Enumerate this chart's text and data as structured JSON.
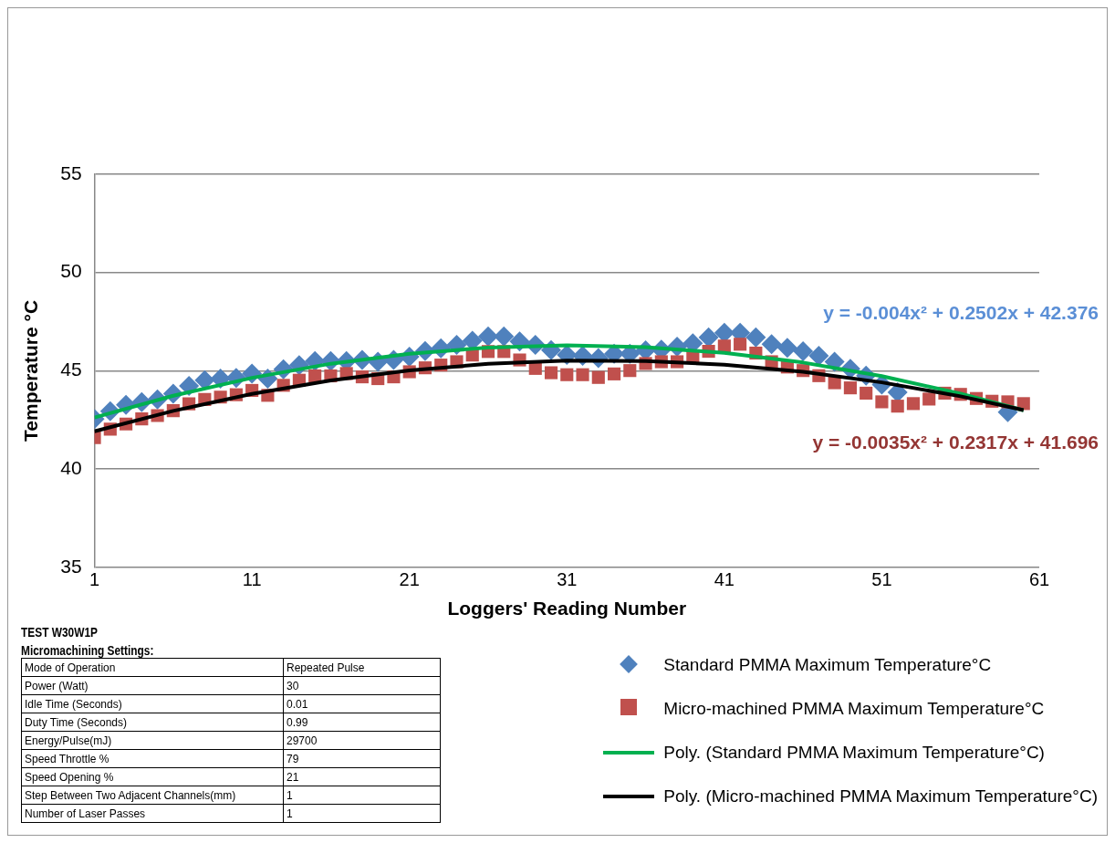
{
  "chart_data": {
    "type": "scatter",
    "xlabel": "Loggers' Reading Number",
    "ylabel": "Temperature °C",
    "xlim": [
      1,
      61
    ],
    "xticks": [
      1,
      11,
      21,
      31,
      41,
      51,
      61
    ],
    "ylim": [
      35,
      55
    ],
    "yticks": [
      35,
      40,
      45,
      50,
      55
    ],
    "grid": "y",
    "legend": "bottom right",
    "x": [
      1,
      2,
      3,
      4,
      5,
      6,
      7,
      8,
      9,
      10,
      11,
      12,
      13,
      14,
      15,
      16,
      17,
      18,
      19,
      20,
      21,
      22,
      23,
      24,
      25,
      26,
      27,
      28,
      29,
      30,
      31,
      32,
      33,
      34,
      35,
      36,
      37,
      38,
      39,
      40,
      41,
      42,
      43,
      44,
      45,
      46,
      47,
      48,
      49,
      50,
      51,
      52,
      53,
      54,
      55,
      56,
      57,
      58,
      59,
      60
    ],
    "series": [
      {
        "name": "Standard PMMA  Maximum Temperature°C",
        "type": "scatter",
        "marker": "diamond",
        "color": "#4f81bd",
        "values": [
          42.55,
          42.94,
          43.27,
          43.4,
          43.54,
          43.83,
          44.23,
          44.52,
          44.6,
          44.64,
          44.86,
          44.6,
          45.08,
          45.29,
          45.5,
          45.5,
          45.5,
          45.55,
          45.46,
          45.55,
          45.72,
          46.01,
          46.15,
          46.32,
          46.53,
          46.75,
          46.75,
          46.49,
          46.32,
          46.05,
          45.81,
          45.76,
          45.64,
          45.87,
          45.87,
          46.04,
          46.08,
          46.22,
          46.4,
          46.7,
          46.93,
          46.93,
          46.7,
          46.35,
          46.17,
          45.99,
          45.76,
          45.46,
          45.1,
          44.75,
          44.3,
          43.91,
          null,
          null,
          null,
          null,
          null,
          null,
          42.9,
          null
        ]
      },
      {
        "name": "Micro-machined PMMA Maximum Temperature°C",
        "type": "scatter",
        "marker": "square",
        "color": "#c0504d",
        "values": [
          41.6,
          42.03,
          42.29,
          42.55,
          42.72,
          42.97,
          43.32,
          43.54,
          43.66,
          43.78,
          44.0,
          43.75,
          44.26,
          44.52,
          44.74,
          44.74,
          44.86,
          44.69,
          44.6,
          44.69,
          44.95,
          45.15,
          45.29,
          45.46,
          45.8,
          45.98,
          45.98,
          45.55,
          45.12,
          44.9,
          44.8,
          44.8,
          44.66,
          44.84,
          45.01,
          45.37,
          45.46,
          45.46,
          45.73,
          45.99,
          46.26,
          46.35,
          45.9,
          45.46,
          45.19,
          45.01,
          44.75,
          44.39,
          44.13,
          43.86,
          43.42,
          43.2,
          43.33,
          43.56,
          43.86,
          43.8,
          43.59,
          43.45,
          43.42,
          43.33
        ]
      },
      {
        "name": "Poly. (Standard PMMA  Maximum Temperature°C)",
        "type": "line",
        "marker": "none",
        "color": "#00b050",
        "x": [
          1,
          6,
          11,
          16,
          21,
          26,
          31,
          36,
          41,
          46,
          51,
          56,
          60
        ],
        "values": [
          42.62,
          43.73,
          44.64,
          45.36,
          45.87,
          46.18,
          46.29,
          46.2,
          45.91,
          45.42,
          44.73,
          43.84,
          42.99
        ]
      },
      {
        "name": "Poly. (Micro-machined PMMA Maximum Temperature°C)",
        "type": "line",
        "marker": "none",
        "color": "#000000",
        "x": [
          1,
          6,
          11,
          16,
          21,
          26,
          31,
          36,
          41,
          46,
          51,
          56,
          60
        ],
        "values": [
          41.92,
          42.96,
          43.82,
          44.51,
          45.02,
          45.35,
          45.52,
          45.5,
          45.31,
          44.95,
          44.41,
          43.7,
          43.0
        ]
      }
    ],
    "annotations": [
      "y = -0.004x² + 0.2502x + 42.376",
      "y = -0.0035x² + 0.2317x + 41.696",
      "TEST W30W1P",
      "Micromachining Settings:",
      "Mode of Operation",
      "Repeated Pulse",
      "Power (Watt)",
      "30",
      "Idle Time (Seconds)",
      "0.01",
      "Duty Time (Seconds)",
      "0.99",
      "Energy/Pulse(mJ)",
      "29700",
      "Speed Throttle %",
      "79",
      "Speed Opening %",
      "21",
      "Step Between Two Adjacent Channels(mm)",
      "1",
      "Number of Laser Passes",
      "1"
    ]
  }
}
